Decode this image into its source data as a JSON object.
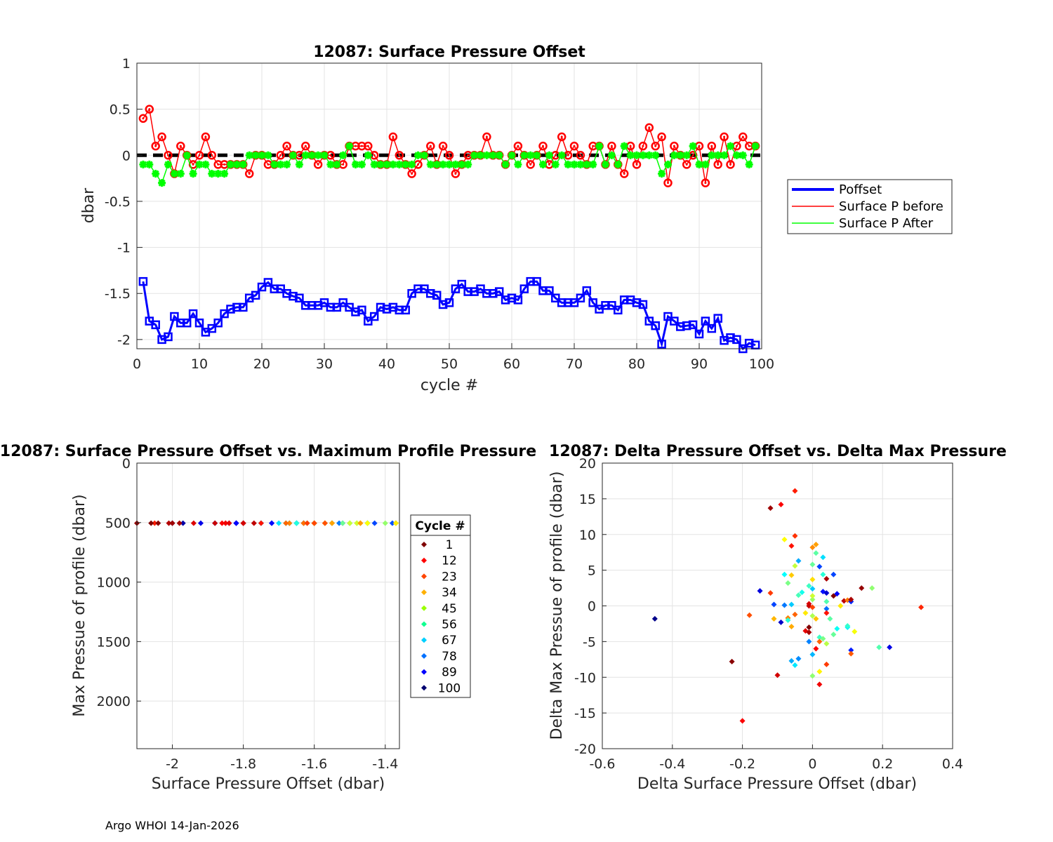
{
  "footer": "Argo WHOI 14-Jan-2026",
  "chart_data": [
    {
      "type": "line",
      "title": "12087: Surface Pressure Offset",
      "xlabel": "cycle #",
      "ylabel": "dbar",
      "xlim": [
        0,
        100
      ],
      "ylim": [
        -2.1,
        1
      ],
      "xticks": [
        "0",
        "10",
        "20",
        "30",
        "40",
        "50",
        "60",
        "70",
        "80",
        "90",
        "100"
      ],
      "yticks": [
        "1",
        "0.5",
        "0",
        "-0.5",
        "-1",
        "-1.5",
        "-2"
      ],
      "grid": true,
      "legend": "outside-right",
      "legend_labels": [
        "Poffset",
        "Surface P before",
        "Surface P After"
      ],
      "series": [
        {
          "name": "Poffset",
          "color": "#0000ff",
          "values": [
            -1.37,
            -1.8,
            -1.84,
            -2.0,
            -1.97,
            -1.75,
            -1.82,
            -1.82,
            -1.72,
            -1.82,
            -1.92,
            -1.88,
            -1.82,
            -1.72,
            -1.67,
            -1.65,
            -1.65,
            -1.55,
            -1.52,
            -1.43,
            -1.38,
            -1.45,
            -1.45,
            -1.5,
            -1.53,
            -1.55,
            -1.63,
            -1.63,
            -1.63,
            -1.6,
            -1.65,
            -1.65,
            -1.6,
            -1.65,
            -1.7,
            -1.68,
            -1.8,
            -1.75,
            -1.65,
            -1.67,
            -1.65,
            -1.68,
            -1.68,
            -1.5,
            -1.45,
            -1.45,
            -1.5,
            -1.52,
            -1.62,
            -1.6,
            -1.45,
            -1.4,
            -1.48,
            -1.48,
            -1.45,
            -1.5,
            -1.5,
            -1.48,
            -1.57,
            -1.55,
            -1.57,
            -1.45,
            -1.37,
            -1.37,
            -1.47,
            -1.47,
            -1.55,
            -1.6,
            -1.6,
            -1.6,
            -1.55,
            -1.47,
            -1.6,
            -1.67,
            -1.63,
            -1.63,
            -1.68,
            -1.57,
            -1.57,
            -1.6,
            -1.62,
            -1.8,
            -1.85,
            -2.05,
            -1.75,
            -1.8,
            -1.86,
            -1.85,
            -1.84,
            -1.94,
            -1.8,
            -1.88,
            -1.77,
            -2.01,
            -1.98,
            -2.0,
            -2.1,
            -2.04,
            -2.06
          ]
        },
        {
          "name": "Surface P before",
          "color": "#ff0000",
          "values": [
            0.4,
            0.5,
            0.1,
            0.2,
            0.0,
            -0.2,
            0.1,
            0.0,
            -0.1,
            0.0,
            0.2,
            0.0,
            -0.1,
            -0.1,
            -0.1,
            -0.1,
            -0.1,
            -0.2,
            0.0,
            0.0,
            -0.1,
            -0.1,
            0.0,
            0.1,
            0.0,
            0.0,
            0.1,
            0.0,
            -0.1,
            0.0,
            0.0,
            -0.1,
            -0.1,
            0.1,
            0.1,
            0.1,
            0.1,
            0.0,
            -0.1,
            -0.1,
            0.2,
            0.0,
            -0.1,
            -0.2,
            -0.1,
            0.0,
            0.1,
            -0.1,
            0.1,
            0.0,
            -0.2,
            -0.1,
            0.0,
            0.0,
            0.0,
            0.2,
            0.0,
            0.0,
            -0.1,
            0.0,
            0.1,
            0.0,
            -0.1,
            0.0,
            0.1,
            -0.1,
            0.0,
            0.2,
            0.0,
            0.1,
            0.0,
            -0.1,
            0.1,
            0.1,
            -0.1,
            0.1,
            -0.1,
            -0.2,
            0.1,
            -0.1,
            0.1,
            0.3,
            0.1,
            0.2,
            -0.3,
            0.1,
            0.0,
            -0.1,
            0.0,
            0.1,
            -0.3,
            0.1,
            -0.1,
            0.2,
            -0.1,
            0.1,
            0.2,
            0.1,
            0.1
          ]
        },
        {
          "name": "Surface P After",
          "color": "#00ff00",
          "values": [
            -0.1,
            -0.1,
            -0.2,
            -0.3,
            -0.1,
            -0.2,
            -0.2,
            0.0,
            -0.2,
            -0.1,
            -0.1,
            -0.2,
            -0.2,
            -0.2,
            -0.1,
            -0.1,
            -0.1,
            0.0,
            0.0,
            0.0,
            0.0,
            -0.1,
            -0.1,
            -0.1,
            0.0,
            -0.1,
            0.0,
            0.0,
            0.0,
            0.0,
            -0.1,
            -0.1,
            0.0,
            0.1,
            -0.1,
            -0.1,
            0.0,
            -0.1,
            -0.1,
            -0.1,
            -0.1,
            -0.1,
            -0.1,
            -0.1,
            0.0,
            0.0,
            -0.1,
            -0.1,
            -0.1,
            -0.1,
            -0.1,
            -0.1,
            -0.1,
            0.0,
            0.0,
            0.0,
            0.0,
            0.0,
            -0.1,
            0.0,
            -0.1,
            0.0,
            0.0,
            0.0,
            -0.1,
            0.0,
            -0.1,
            0.0,
            -0.1,
            -0.1,
            -0.1,
            -0.1,
            -0.1,
            0.1,
            -0.1,
            0.0,
            -0.1,
            0.1,
            0.0,
            0.0,
            0.0,
            0.0,
            0.0,
            -0.2,
            -0.1,
            0.0,
            0.0,
            0.0,
            0.1,
            -0.1,
            -0.1,
            0.0,
            0.0,
            0.0,
            0.1,
            0.0,
            0.0,
            -0.1,
            0.1
          ]
        }
      ],
      "reference_line": {
        "y": 0,
        "style": "dashed",
        "color": "#000000"
      }
    },
    {
      "type": "scatter",
      "title": "12087: Surface Pressure Offset vs. Maximum Profile Pressure",
      "xlabel": "Surface Pressure Offset (dbar)",
      "ylabel": "Max Pressue of profile (dbar)",
      "xlim": [
        -2.1,
        -1.36
      ],
      "ylim": [
        2400,
        0
      ],
      "xticks": [
        "-2",
        "-1.8",
        "-1.6",
        "-1.4"
      ],
      "yticks": [
        "0",
        "500",
        "1000",
        "1500",
        "2000"
      ],
      "max_pressure": 505,
      "legend_title": "Cycle #",
      "legend_entries": [
        "1",
        "12",
        "23",
        "34",
        "45",
        "56",
        "67",
        "78",
        "89",
        "100"
      ],
      "legend_colors": [
        "#7f0000",
        "#ff0000",
        "#ff4500",
        "#ffb000",
        "#9aff00",
        "#10ff90",
        "#00d0ff",
        "#0070ff",
        "#0000ff",
        "#000070"
      ]
    },
    {
      "type": "scatter",
      "title": "12087: Delta Pressure Offset vs. Delta Max Pressure",
      "xlabel": "Delta Surface Pressure Offset (dbar)",
      "ylabel": "Delta Max Pressue of profile (dbar)",
      "xlim": [
        -0.6,
        0.4
      ],
      "ylim": [
        -20,
        20
      ],
      "xticks": [
        "-0.6",
        "-0.4",
        "-0.2",
        "0",
        "0.2",
        "0.4"
      ],
      "yticks": [
        "20",
        "15",
        "10",
        "5",
        "0",
        "-5",
        "-10",
        "-15",
        "-20"
      ],
      "points": [
        [
          -0.45,
          -1.8,
          2
        ],
        [
          -0.23,
          -7.8,
          99
        ],
        [
          -0.2,
          -16.1,
          88
        ],
        [
          -0.18,
          -1.3,
          80
        ],
        [
          -0.15,
          2.1,
          10
        ],
        [
          -0.12,
          13.7,
          97
        ],
        [
          -0.12,
          1.8,
          82
        ],
        [
          -0.11,
          0.2,
          20
        ],
        [
          -0.11,
          -1.8,
          70
        ],
        [
          -0.1,
          -9.7,
          92
        ],
        [
          -0.09,
          14.2,
          88
        ],
        [
          -0.09,
          -2.3,
          8
        ],
        [
          -0.08,
          9.3,
          63
        ],
        [
          -0.08,
          4.4,
          38
        ],
        [
          -0.08,
          0.1,
          25
        ],
        [
          -0.07,
          3.2,
          50
        ],
        [
          -0.07,
          -1.7,
          75
        ],
        [
          -0.07,
          -2.0,
          42
        ],
        [
          -0.06,
          0.2,
          33
        ],
        [
          -0.06,
          -2.9,
          71
        ],
        [
          -0.06,
          8.4,
          86
        ],
        [
          -0.06,
          4.3,
          68
        ],
        [
          -0.06,
          -7.7,
          30
        ],
        [
          -0.05,
          9.8,
          83
        ],
        [
          -0.05,
          5.6,
          57
        ],
        [
          -0.05,
          -1.2,
          78
        ],
        [
          -0.05,
          -8.3,
          36
        ],
        [
          -0.05,
          16.1,
          85
        ],
        [
          -0.04,
          6.3,
          30
        ],
        [
          -0.04,
          1.5,
          45
        ],
        [
          -0.04,
          -7.4,
          27
        ],
        [
          -0.03,
          1.9,
          40
        ],
        [
          -0.02,
          -1.0,
          65
        ],
        [
          -0.02,
          -3.5,
          90
        ],
        [
          -0.01,
          -3.0,
          100
        ],
        [
          -0.01,
          -3.7,
          96
        ],
        [
          -0.01,
          0.3,
          91
        ],
        [
          -0.01,
          2.8,
          44
        ],
        [
          0.0,
          -1.4,
          55
        ],
        [
          0.0,
          5.8,
          48
        ],
        [
          0.0,
          0.9,
          53
        ],
        [
          -0.01,
          0.0,
          93
        ],
        [
          -0.01,
          -5.0,
          26
        ],
        [
          0.0,
          8.2,
          74
        ],
        [
          0.0,
          3.7,
          66
        ],
        [
          0.0,
          1.4,
          58
        ],
        [
          0.0,
          -0.2,
          81
        ],
        [
          0.0,
          2.4,
          33
        ],
        [
          0.0,
          -6.8,
          31
        ],
        [
          0.0,
          -9.8,
          52
        ],
        [
          0.01,
          -6.0,
          88
        ],
        [
          0.01,
          7.4,
          47
        ],
        [
          0.01,
          -1.8,
          69
        ],
        [
          0.01,
          8.6,
          72
        ],
        [
          0.02,
          -9.2,
          64
        ],
        [
          0.02,
          -4.4,
          44
        ],
        [
          0.02,
          -11.0,
          89
        ],
        [
          0.02,
          5.5,
          20
        ],
        [
          0.02,
          -5.0,
          78
        ],
        [
          0.03,
          6.8,
          35
        ],
        [
          0.03,
          2.0,
          15
        ],
        [
          0.03,
          -4.6,
          50
        ],
        [
          0.03,
          4.4,
          42
        ],
        [
          0.04,
          3.8,
          96
        ],
        [
          0.04,
          1.8,
          9
        ],
        [
          0.04,
          -0.4,
          24
        ],
        [
          0.04,
          -1.0,
          86
        ],
        [
          0.04,
          -5.3,
          56
        ],
        [
          0.04,
          -8.2,
          82
        ],
        [
          0.04,
          0.6,
          46
        ],
        [
          0.05,
          -1.8,
          47
        ],
        [
          0.06,
          4.4,
          20
        ],
        [
          0.06,
          -4.0,
          48
        ],
        [
          0.06,
          1.4,
          100
        ],
        [
          0.07,
          1.7,
          13
        ],
        [
          0.07,
          -3.2,
          39
        ],
        [
          0.08,
          0.0,
          65
        ],
        [
          0.09,
          0.7,
          94
        ],
        [
          0.1,
          -3.0,
          37
        ],
        [
          0.1,
          0.8,
          76
        ],
        [
          0.1,
          -2.8,
          43
        ],
        [
          0.11,
          0.6,
          17
        ],
        [
          0.11,
          0.9,
          96
        ],
        [
          0.11,
          -6.2,
          16
        ],
        [
          0.11,
          -6.7,
          79
        ],
        [
          0.12,
          -3.6,
          62
        ],
        [
          0.14,
          2.5,
          98
        ],
        [
          0.17,
          2.5,
          52
        ],
        [
          0.19,
          -5.8,
          46
        ],
        [
          0.22,
          -5.8,
          11
        ],
        [
          0.31,
          -0.2,
          84
        ]
      ]
    }
  ]
}
